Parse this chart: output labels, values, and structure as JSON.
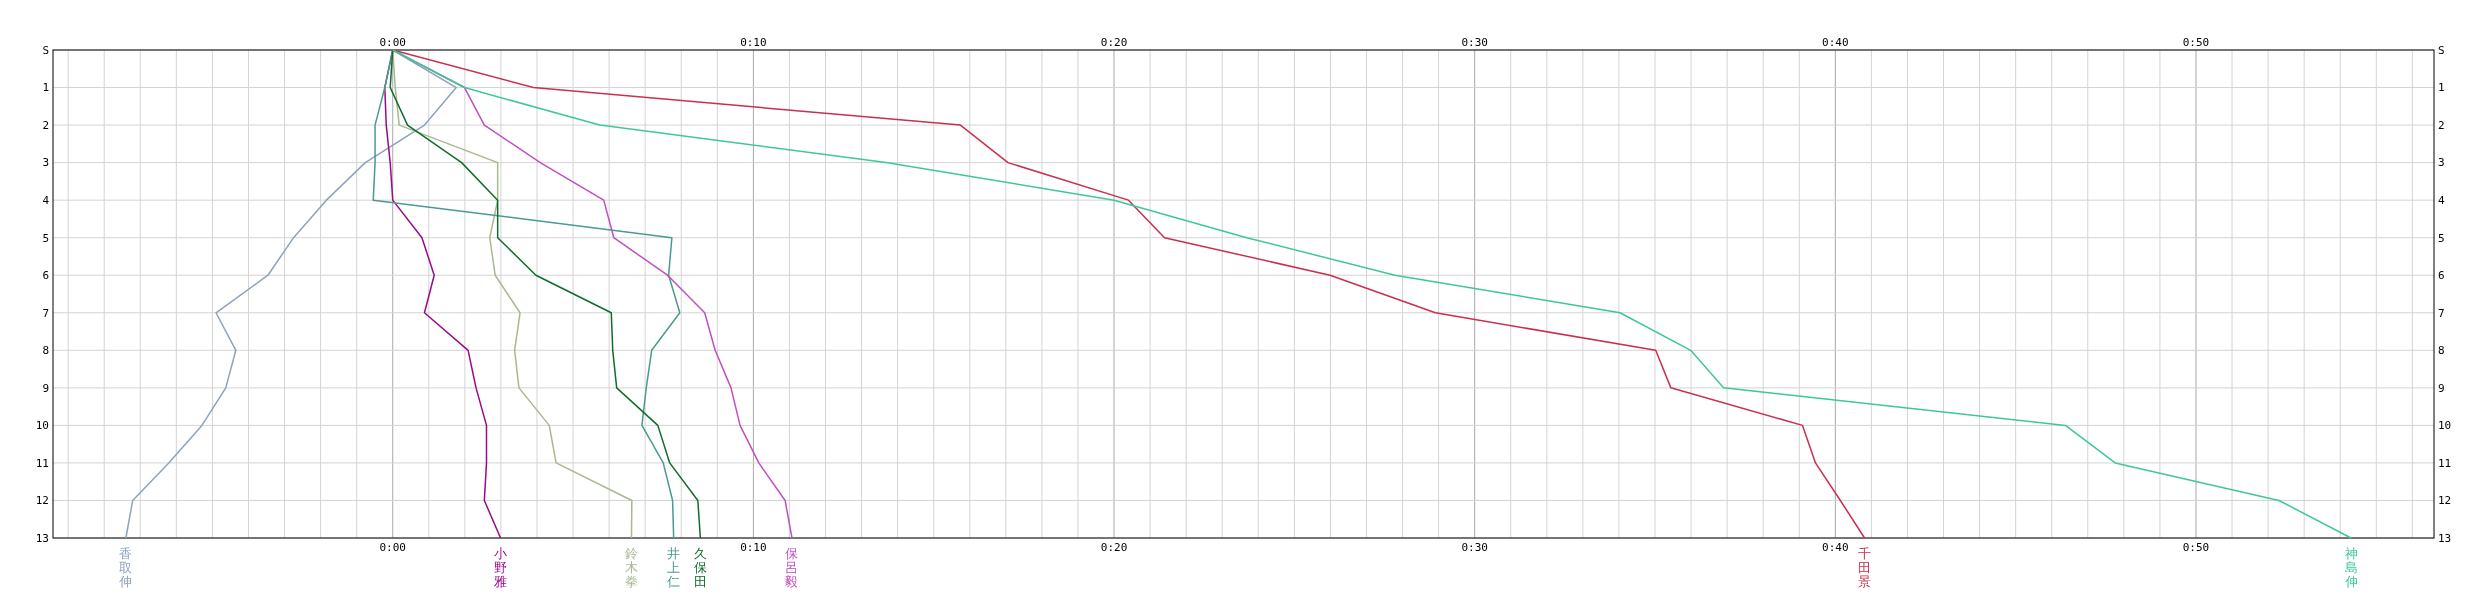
{
  "chart_data": {
    "type": "line",
    "orientation": "horizontal",
    "grid": true,
    "marker": "none",
    "line_style": "solid",
    "categories": [
      "S",
      "1",
      "2",
      "3",
      "4",
      "5",
      "6",
      "7",
      "8",
      "9",
      "10",
      "11",
      "12",
      "13"
    ],
    "xlim": [
      -9.42,
      56.6
    ],
    "x2lim": [
      -9.42,
      56.6
    ],
    "xticks": [
      {
        "value": -9,
        "label": null
      },
      {
        "value": -8,
        "label": null
      },
      {
        "value": -7,
        "label": null
      },
      {
        "value": -6,
        "label": null
      },
      {
        "value": -5,
        "label": null
      },
      {
        "value": -4,
        "label": null
      },
      {
        "value": -3,
        "label": null
      },
      {
        "value": -2,
        "label": null
      },
      {
        "value": -1,
        "label": null
      },
      {
        "value": 0,
        "label": "0:00"
      },
      {
        "value": 1,
        "label": null
      },
      {
        "value": 2,
        "label": null
      },
      {
        "value": 3,
        "label": null
      },
      {
        "value": 4,
        "label": null
      },
      {
        "value": 5,
        "label": null
      },
      {
        "value": 6,
        "label": null
      },
      {
        "value": 7,
        "label": null
      },
      {
        "value": 8,
        "label": null
      },
      {
        "value": 9,
        "label": null
      },
      {
        "value": 10,
        "label": "0:10"
      },
      {
        "value": 11,
        "label": null
      },
      {
        "value": 12,
        "label": null
      },
      {
        "value": 13,
        "label": null
      },
      {
        "value": 14,
        "label": null
      },
      {
        "value": 15,
        "label": null
      },
      {
        "value": 16,
        "label": null
      },
      {
        "value": 17,
        "label": null
      },
      {
        "value": 18,
        "label": null
      },
      {
        "value": 19,
        "label": null
      },
      {
        "value": 20,
        "label": "0:20"
      },
      {
        "value": 21,
        "label": null
      },
      {
        "value": 22,
        "label": null
      },
      {
        "value": 23,
        "label": null
      },
      {
        "value": 24,
        "label": null
      },
      {
        "value": 25,
        "label": null
      },
      {
        "value": 26,
        "label": null
      },
      {
        "value": 27,
        "label": null
      },
      {
        "value": 28,
        "label": null
      },
      {
        "value": 29,
        "label": null
      },
      {
        "value": 30,
        "label": "0:30"
      },
      {
        "value": 31,
        "label": null
      },
      {
        "value": 32,
        "label": null
      },
      {
        "value": 33,
        "label": null
      },
      {
        "value": 34,
        "label": null
      },
      {
        "value": 35,
        "label": null
      },
      {
        "value": 36,
        "label": null
      },
      {
        "value": 37,
        "label": null
      },
      {
        "value": 38,
        "label": null
      },
      {
        "value": 39,
        "label": null
      },
      {
        "value": 40,
        "label": "0:40"
      },
      {
        "value": 41,
        "label": null
      },
      {
        "value": 42,
        "label": null
      },
      {
        "value": 43,
        "label": null
      },
      {
        "value": 44,
        "label": null
      },
      {
        "value": 45,
        "label": null
      },
      {
        "value": 46,
        "label": null
      },
      {
        "value": 47,
        "label": null
      },
      {
        "value": 48,
        "label": null
      },
      {
        "value": 49,
        "label": null
      },
      {
        "value": 50,
        "label": "0:50"
      },
      {
        "value": 51,
        "label": null
      },
      {
        "value": 52,
        "label": null
      },
      {
        "value": 53,
        "label": null
      },
      {
        "value": 54,
        "label": null
      },
      {
        "value": 55,
        "label": null
      },
      {
        "value": 56,
        "label": null
      }
    ],
    "x2ticks": [
      {
        "value": 0,
        "label": "0:00"
      },
      {
        "value": 10,
        "label": "0:10"
      },
      {
        "value": 20,
        "label": "0:20"
      },
      {
        "value": 30,
        "label": "0:30"
      },
      {
        "value": 40,
        "label": "0:40"
      },
      {
        "value": 50,
        "label": "0:50"
      }
    ],
    "series": [
      {
        "name": "香取伸",
        "color": "#8ea2bc",
        "values": [
          0,
          1.76,
          0.88,
          -0.76,
          -1.84,
          -2.75,
          -3.46,
          -4.9,
          -4.35,
          -4.63,
          -5.29,
          -6.21,
          -7.21,
          -7.4
        ]
      },
      {
        "name": "小野雅",
        "color": "#990a8a",
        "values": [
          0,
          -0.22,
          -0.18,
          -0.07,
          0,
          0.81,
          1.15,
          0.88,
          2.09,
          2.31,
          2.6,
          2.6,
          2.54,
          2.99
        ]
      },
      {
        "name": "鈴木拳",
        "color": "#a8b890",
        "values": [
          0,
          0.07,
          0.18,
          2.91,
          2.91,
          2.69,
          2.84,
          3.53,
          3.38,
          3.5,
          4.34,
          4.53,
          6.63,
          6.62
        ]
      },
      {
        "name": "井上仁",
        "color": "#4a9a90",
        "values": [
          0,
          -0.22,
          -0.49,
          -0.49,
          -0.54,
          7.74,
          7.65,
          7.96,
          7.18,
          7.03,
          6.91,
          7.5,
          7.76,
          7.79
        ]
      },
      {
        "name": "久保田",
        "color": "#126b2e",
        "values": [
          0,
          -0.07,
          0.41,
          1.91,
          2.91,
          2.91,
          3.97,
          6.06,
          6.1,
          6.21,
          7.35,
          7.68,
          8.46,
          8.53
        ]
      },
      {
        "name": "保呂毅",
        "color": "#c050c0",
        "values": [
          0,
          1.99,
          2.54,
          4.09,
          5.85,
          6.13,
          7.62,
          8.65,
          8.94,
          9.38,
          9.63,
          10.15,
          10.88,
          11.07
        ]
      },
      {
        "name": "千田景",
        "color": "#c8304e",
        "values": [
          0,
          3.9,
          15.74,
          17.06,
          20.4,
          21.4,
          25.99,
          28.91,
          35.02,
          35.44,
          39.09,
          39.45,
          40.14,
          40.81
        ]
      },
      {
        "name": "神島伸",
        "color": "#3ec896",
        "values": [
          0,
          1.99,
          5.74,
          13.68,
          20.0,
          23.68,
          27.79,
          34.03,
          35.99,
          36.9,
          46.38,
          47.76,
          52.3,
          54.3
        ]
      }
    ]
  }
}
